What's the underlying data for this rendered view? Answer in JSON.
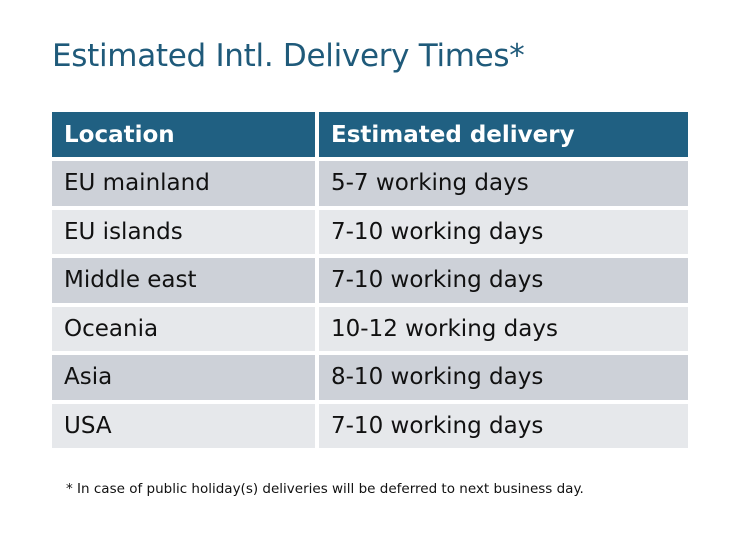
{
  "title": "Estimated Intl. Delivery Times*",
  "table": {
    "headers": [
      "Location",
      "Estimated delivery"
    ],
    "rows": [
      [
        "EU mainland",
        "5-7 working days"
      ],
      [
        "EU islands",
        "7-10 working days"
      ],
      [
        "Middle east",
        "7-10 working days"
      ],
      [
        "Oceania",
        "10-12 working days"
      ],
      [
        "Asia",
        "8-10 working days"
      ],
      [
        "USA",
        "7-10 working days"
      ]
    ]
  },
  "footnote": "* In case of public holiday(s) deliveries will be deferred to next business day.",
  "colors": {
    "title": "#1f5a7a",
    "header_bg": "#206082",
    "row_dark": "#cdd1d8",
    "row_light": "#e6e8eb"
  }
}
